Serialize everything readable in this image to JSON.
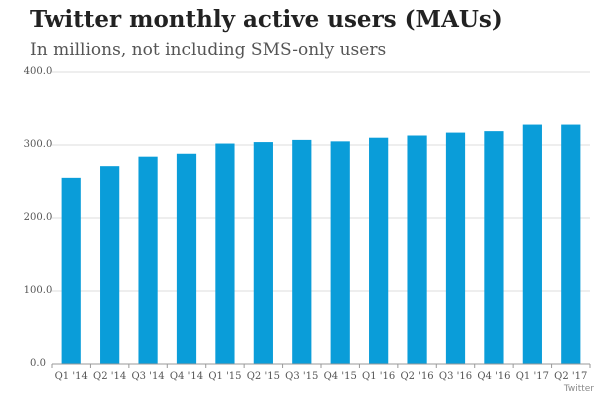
{
  "chart_data": {
    "type": "bar",
    "title": "Twitter monthly active users (MAUs)",
    "subtitle": "In millions, not including SMS-only users",
    "source": "Twitter",
    "categories": [
      "Q1 '14",
      "Q2 '14",
      "Q3 '14",
      "Q4 '14",
      "Q1 '15",
      "Q2 '15",
      "Q3 '15",
      "Q4 '15",
      "Q1 '16",
      "Q2 '16",
      "Q3 '16",
      "Q4 '16",
      "Q1 '17",
      "Q2 '17"
    ],
    "values": [
      255,
      271,
      284,
      288,
      302,
      304,
      307,
      305,
      310,
      313,
      317,
      319,
      328,
      328
    ],
    "ylim": [
      0,
      400
    ],
    "yticks": [
      0,
      100,
      200,
      300,
      400
    ],
    "ytick_labels": [
      "0.0",
      "100.0",
      "200.0",
      "300.0",
      "400.0"
    ],
    "grid": true,
    "bar_color": "#0a9dd9"
  }
}
